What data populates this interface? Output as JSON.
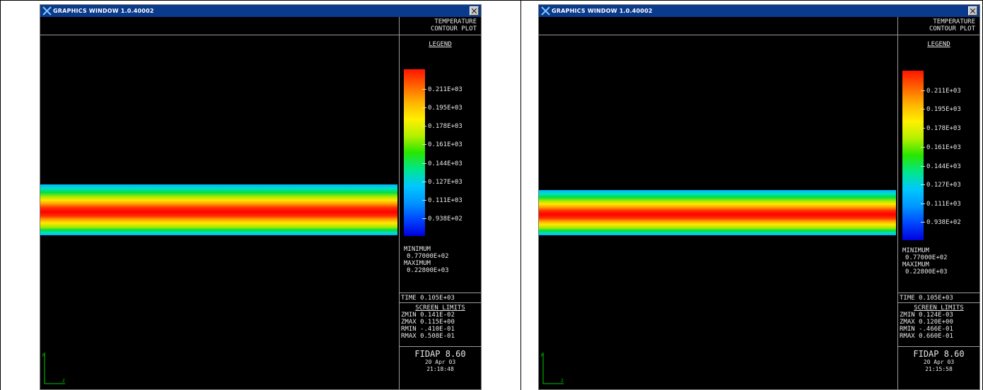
{
  "colors": {
    "titlebar": "#0a3a8c",
    "background": "#000000",
    "text": "#e8e8e8"
  },
  "windows": [
    {
      "title": "GRAPHICS WINDOW 1.0.40002",
      "plot_title_1": "TEMPERATURE",
      "plot_title_2": "CONTOUR PLOT",
      "legend_label": "LEGEND",
      "legend_ticks": [
        "0.211E+03",
        "0.195E+03",
        "0.178E+03",
        "0.161E+03",
        "0.144E+03",
        "0.127E+03",
        "0.111E+03",
        "0.938E+02"
      ],
      "minimum_label": "MINIMUM",
      "minimum_value": "0.77000E+02",
      "maximum_label": "MAXIMUM",
      "maximum_value": "0.22800E+03",
      "time": "TIME 0.105E+03",
      "screen_limits_label": "SCREEN LIMITS",
      "zmin": "ZMIN 0.141E-02",
      "zmax": "ZMAX 0.115E+00",
      "rmin": "RMIN -.410E-01",
      "rmax": "RMAX 0.508E-01",
      "software": "FIDAP 8.60",
      "date": "20 Apr 03",
      "clock": "21:18:48"
    },
    {
      "title": "GRAPHICS WINDOW 1.0.40002",
      "plot_title_1": "TEMPERATURE",
      "plot_title_2": "CONTOUR PLOT",
      "legend_label": "LEGEND",
      "legend_ticks": [
        "0.211E+03",
        "0.195E+03",
        "0.178E+03",
        "0.161E+03",
        "0.144E+03",
        "0.127E+03",
        "0.111E+03",
        "0.938E+02"
      ],
      "minimum_label": "MINIMUM",
      "minimum_value": "0.77000E+02",
      "maximum_label": "MAXIMUM",
      "maximum_value": "0.22800E+03",
      "time": "TIME 0.105E+03",
      "screen_limits_label": "SCREEN LIMITS",
      "zmin": "ZMIN 0.124E-03",
      "zmax": "ZMAX 0.120E+00",
      "rmin": "RMIN -.466E-01",
      "rmax": "RMAX 0.660E-01",
      "software": "FIDAP 8.60",
      "date": "20 Apr 03",
      "clock": "21:15:58"
    }
  ]
}
